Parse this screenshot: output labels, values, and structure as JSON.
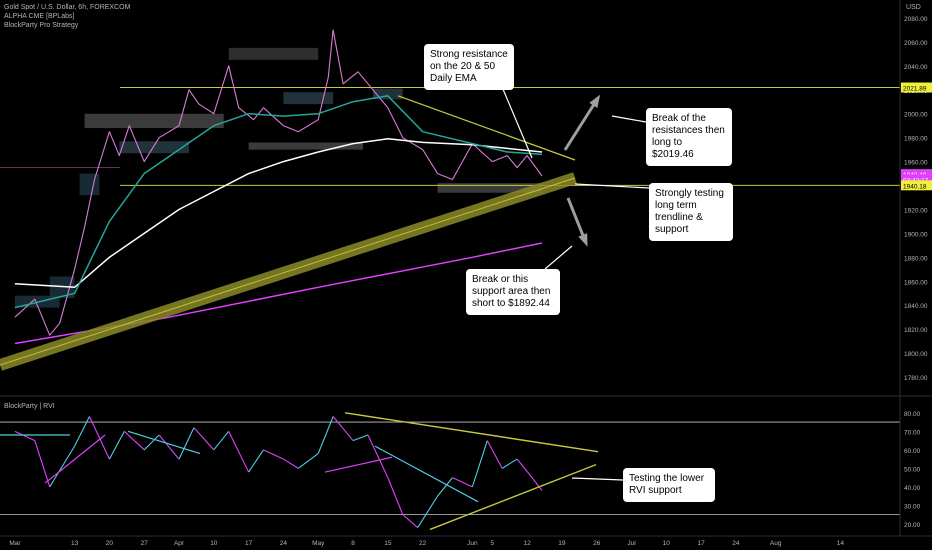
{
  "header": {
    "symbol": "Gold Spot / U.S. Dollar, 6h, FOREXCOM",
    "indicator_1": "ALPHA CME [BPLabs]",
    "indicator_2": "BlockParty Pro Strategy",
    "currency": "USD"
  },
  "rvi_label": "BlockParty | RVI",
  "callouts": {
    "resistance": "Strong resistance on the 20 & 50 Daily EMA",
    "breakout": "Break of the resistances then long to $2019.46",
    "support_test": "Strongly testing long term trendline & support",
    "breakdown": "Break or this support area then short to $1892.44",
    "rvi_support": "Testing the lower RVI support"
  },
  "price_badges": {
    "level_high": "2021.89",
    "current": "1948.40",
    "countdown": "03:42:17",
    "level_low": "1940.18"
  },
  "colors": {
    "background": "#000000",
    "price_line": "#d67cd6",
    "ema_white": "#ffffff",
    "ema_green": "#26a69a",
    "ema_magenta": "#e040fb",
    "trend_olive": "#c8c83c",
    "rvi_cyan": "#4dd0e1",
    "rvi_magenta": "#e040fb"
  },
  "chart_data": [
    {
      "type": "line",
      "title": "Gold Spot / U.S. Dollar, 6h, FOREXCOM",
      "ylabel": "USD",
      "ylim": [
        1765,
        2095
      ],
      "y_ticks": [
        "2080.00",
        "2060.00",
        "2040.00",
        "2020.00",
        "2000.00",
        "1980.00",
        "1960.00",
        "1940.00",
        "1920.00",
        "1900.00",
        "1880.00",
        "1860.00",
        "1840.00",
        "1820.00",
        "1800.00",
        "1780.00"
      ],
      "x_ticks": [
        "Mar",
        "13",
        "20",
        "27",
        "Apr",
        "10",
        "17",
        "24",
        "May",
        "8",
        "15",
        "22",
        "Jun",
        "5",
        "12",
        "19",
        "26",
        "Jul",
        "10",
        "17",
        "24",
        "Aug",
        "14"
      ],
      "x_tick_dates": [
        "2023-03-01",
        "2023-03-13",
        "2023-03-20",
        "2023-03-27",
        "2023-04-03",
        "2023-04-10",
        "2023-04-17",
        "2023-04-24",
        "2023-05-01",
        "2023-05-08",
        "2023-05-15",
        "2023-05-22",
        "2023-06-01",
        "2023-06-05",
        "2023-06-12",
        "2023-06-19",
        "2023-06-26",
        "2023-07-03",
        "2023-07-10",
        "2023-07-17",
        "2023-07-24",
        "2023-08-01",
        "2023-08-14"
      ],
      "series": [
        {
          "name": "price",
          "color": "#d67cd6",
          "points": [
            [
              "2023-03-01",
              1830
            ],
            [
              "2023-03-05",
              1845
            ],
            [
              "2023-03-08",
              1815
            ],
            [
              "2023-03-10",
              1825
            ],
            [
              "2023-03-13",
              1870
            ],
            [
              "2023-03-15",
              1905
            ],
            [
              "2023-03-17",
              1945
            ],
            [
              "2023-03-20",
              1985
            ],
            [
              "2023-03-22",
              1965
            ],
            [
              "2023-03-24",
              1990
            ],
            [
              "2023-03-27",
              1960
            ],
            [
              "2023-03-30",
              1980
            ],
            [
              "2023-04-03",
              1990
            ],
            [
              "2023-04-05",
              2020
            ],
            [
              "2023-04-07",
              2008
            ],
            [
              "2023-04-10",
              2000
            ],
            [
              "2023-04-13",
              2040
            ],
            [
              "2023-04-15",
              2005
            ],
            [
              "2023-04-18",
              1995
            ],
            [
              "2023-04-20",
              2005
            ],
            [
              "2023-04-24",
              1990
            ],
            [
              "2023-04-27",
              1985
            ],
            [
              "2023-05-01",
              1995
            ],
            [
              "2023-05-03",
              2030
            ],
            [
              "2023-05-04",
              2070
            ],
            [
              "2023-05-06",
              2025
            ],
            [
              "2023-05-09",
              2035
            ],
            [
              "2023-05-11",
              2025
            ],
            [
              "2023-05-13",
              2015
            ],
            [
              "2023-05-15",
              2005
            ],
            [
              "2023-05-18",
              1980
            ],
            [
              "2023-05-22",
              1970
            ],
            [
              "2023-05-25",
              1950
            ],
            [
              "2023-05-28",
              1945
            ],
            [
              "2023-06-01",
              1975
            ],
            [
              "2023-06-05",
              1960
            ],
            [
              "2023-06-08",
              1965
            ],
            [
              "2023-06-10",
              1955
            ],
            [
              "2023-06-12",
              1965
            ],
            [
              "2023-06-15",
              1948
            ]
          ]
        },
        {
          "name": "ema_white",
          "color": "#ffffff",
          "points": [
            [
              "2023-03-01",
              1858
            ],
            [
              "2023-03-13",
              1855
            ],
            [
              "2023-03-20",
              1880
            ],
            [
              "2023-03-27",
              1900
            ],
            [
              "2023-04-03",
              1920
            ],
            [
              "2023-04-10",
              1935
            ],
            [
              "2023-04-17",
              1950
            ],
            [
              "2023-04-24",
              1960
            ],
            [
              "2023-05-01",
              1968
            ],
            [
              "2023-05-08",
              1975
            ],
            [
              "2023-05-15",
              1979
            ],
            [
              "2023-05-22",
              1976
            ],
            [
              "2023-06-01",
              1974
            ],
            [
              "2023-06-08",
              1971
            ],
            [
              "2023-06-15",
              1968
            ]
          ]
        },
        {
          "name": "ema_green",
          "color": "#26a69a",
          "points": [
            [
              "2023-03-01",
              1838
            ],
            [
              "2023-03-13",
              1850
            ],
            [
              "2023-03-20",
              1910
            ],
            [
              "2023-03-27",
              1950
            ],
            [
              "2023-04-03",
              1970
            ],
            [
              "2023-04-10",
              1990
            ],
            [
              "2023-04-17",
              2000
            ],
            [
              "2023-04-24",
              1998
            ],
            [
              "2023-05-01",
              2000
            ],
            [
              "2023-05-08",
              2010
            ],
            [
              "2023-05-15",
              2015
            ],
            [
              "2023-05-22",
              1985
            ],
            [
              "2023-06-01",
              1975
            ],
            [
              "2023-06-08",
              1968
            ],
            [
              "2023-06-15",
              1966
            ]
          ]
        },
        {
          "name": "ema_magenta",
          "color": "#e040fb",
          "points": [
            [
              "2023-03-01",
              1808
            ],
            [
              "2023-04-01",
              1830
            ],
            [
              "2023-05-01",
              1855
            ],
            [
              "2023-06-01",
              1880
            ],
            [
              "2023-06-15",
              1892
            ]
          ]
        }
      ],
      "levels": [
        2021.89,
        1940.18
      ]
    },
    {
      "type": "line",
      "title": "BlockParty | RVI",
      "ylim": [
        14,
        88
      ],
      "y_ticks": [
        "80.00",
        "70.00",
        "60.00",
        "50.00",
        "40.00",
        "30.00",
        "20.00"
      ],
      "levels": [
        75,
        25
      ],
      "series": [
        {
          "name": "rvi",
          "points": [
            [
              "2023-03-01",
              70
            ],
            [
              "2023-03-05",
              65
            ],
            [
              "2023-03-08",
              40
            ],
            [
              "2023-03-13",
              62
            ],
            [
              "2023-03-16",
              78
            ],
            [
              "2023-03-20",
              55
            ],
            [
              "2023-03-23",
              70
            ],
            [
              "2023-03-27",
              60
            ],
            [
              "2023-03-30",
              68
            ],
            [
              "2023-04-03",
              55
            ],
            [
              "2023-04-06",
              72
            ],
            [
              "2023-04-10",
              60
            ],
            [
              "2023-04-13",
              70
            ],
            [
              "2023-04-17",
              48
            ],
            [
              "2023-04-20",
              60
            ],
            [
              "2023-04-24",
              55
            ],
            [
              "2023-04-27",
              50
            ],
            [
              "2023-05-01",
              58
            ],
            [
              "2023-05-04",
              78
            ],
            [
              "2023-05-08",
              65
            ],
            [
              "2023-05-11",
              68
            ],
            [
              "2023-05-15",
              45
            ],
            [
              "2023-05-18",
              25
            ],
            [
              "2023-05-21",
              18
            ],
            [
              "2023-05-25",
              35
            ],
            [
              "2023-05-28",
              45
            ],
            [
              "2023-06-01",
              40
            ],
            [
              "2023-06-04",
              65
            ],
            [
              "2023-06-07",
              50
            ],
            [
              "2023-06-10",
              55
            ],
            [
              "2023-06-13",
              45
            ],
            [
              "2023-06-15",
              38
            ]
          ]
        }
      ]
    }
  ]
}
